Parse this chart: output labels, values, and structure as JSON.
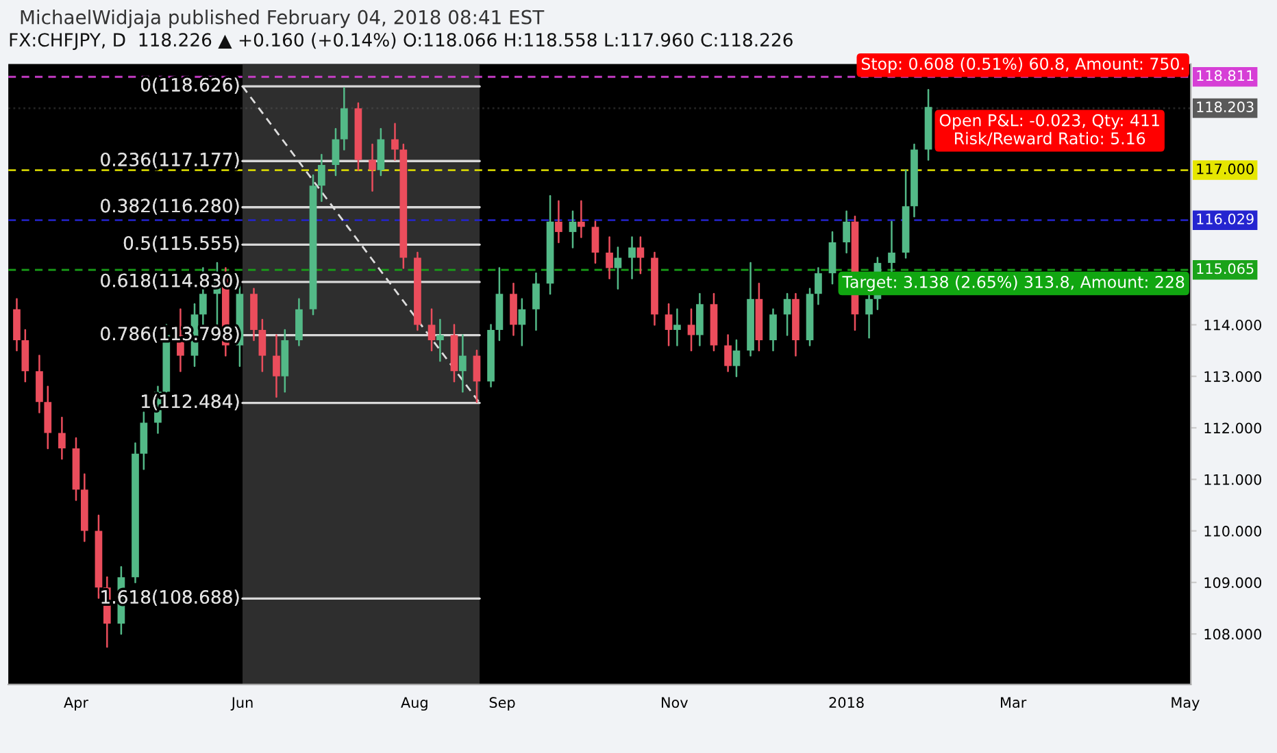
{
  "chart_data": {
    "type": "candlestick",
    "title": "MichaelWidjaja published February 04, 2018 08:41 EST",
    "subtitle": "FX:CHFJPY, D  118.226 ▲ +0.160 (+0.14%) O:118.066 H:118.558 L:117.960 C:118.226",
    "x": [
      "2017-03-13",
      "2017-03-16",
      "2017-03-21",
      "2017-03-24",
      "2017-03-29",
      "2017-04-03",
      "2017-04-06",
      "2017-04-11",
      "2017-04-14",
      "2017-04-19",
      "2017-04-24",
      "2017-04-27",
      "2017-05-02",
      "2017-05-05",
      "2017-05-10",
      "2017-05-15",
      "2017-05-18",
      "2017-05-23",
      "2017-05-26",
      "2017-05-31",
      "2017-06-05",
      "2017-06-08",
      "2017-06-13",
      "2017-06-16",
      "2017-06-21",
      "2017-06-26",
      "2017-06-29",
      "2017-07-04",
      "2017-07-07",
      "2017-07-12",
      "2017-07-17",
      "2017-07-20",
      "2017-07-25",
      "2017-07-28",
      "2017-08-02",
      "2017-08-07",
      "2017-08-10",
      "2017-08-15",
      "2017-08-18",
      "2017-08-23",
      "2017-08-28",
      "2017-08-31",
      "2017-09-05",
      "2017-09-08",
      "2017-09-13",
      "2017-09-18",
      "2017-09-21",
      "2017-09-26",
      "2017-09-29",
      "2017-10-04",
      "2017-10-09",
      "2017-10-12",
      "2017-10-17",
      "2017-10-20",
      "2017-10-25",
      "2017-10-30",
      "2017-11-02",
      "2017-11-07",
      "2017-11-10",
      "2017-11-15",
      "2017-11-20",
      "2017-11-23",
      "2017-11-28",
      "2017-12-01",
      "2017-12-06",
      "2017-12-11",
      "2017-12-14",
      "2017-12-19",
      "2017-12-22",
      "2017-12-27",
      "2018-01-01",
      "2018-01-04",
      "2018-01-09",
      "2018-01-12",
      "2018-01-17",
      "2018-01-22",
      "2018-01-25",
      "2018-01-30"
    ],
    "ohlc": [
      [
        114.3,
        114.5,
        113.5,
        113.7
      ],
      [
        113.7,
        113.9,
        112.9,
        113.1
      ],
      [
        113.1,
        113.4,
        112.3,
        112.5
      ],
      [
        112.5,
        112.8,
        111.6,
        111.9
      ],
      [
        111.9,
        112.2,
        111.4,
        111.6
      ],
      [
        111.6,
        111.8,
        110.6,
        110.8
      ],
      [
        110.8,
        111.1,
        109.8,
        110.0
      ],
      [
        110.0,
        110.3,
        108.7,
        108.9
      ],
      [
        108.9,
        109.1,
        107.75,
        108.2
      ],
      [
        108.2,
        109.3,
        108.0,
        109.1
      ],
      [
        109.1,
        111.7,
        109.0,
        111.5
      ],
      [
        111.5,
        112.3,
        111.2,
        112.1
      ],
      [
        112.1,
        112.8,
        111.9,
        112.7
      ],
      [
        112.7,
        114.0,
        112.7,
        113.8
      ],
      [
        113.8,
        114.3,
        113.1,
        113.4
      ],
      [
        113.4,
        114.4,
        113.2,
        114.2
      ],
      [
        114.2,
        115.1,
        114.0,
        114.6
      ],
      [
        114.6,
        115.2,
        114.0,
        114.9
      ],
      [
        114.9,
        115.1,
        113.4,
        113.6
      ],
      [
        113.6,
        114.8,
        113.2,
        114.6
      ],
      [
        114.6,
        114.7,
        113.7,
        113.9
      ],
      [
        113.9,
        114.1,
        113.1,
        113.4
      ],
      [
        113.4,
        113.8,
        112.6,
        113.0
      ],
      [
        113.0,
        113.9,
        112.7,
        113.7
      ],
      [
        113.7,
        114.5,
        113.6,
        114.3
      ],
      [
        114.3,
        116.9,
        114.2,
        116.7
      ],
      [
        116.7,
        117.3,
        116.4,
        117.1
      ],
      [
        117.1,
        117.8,
        116.9,
        117.6
      ],
      [
        117.6,
        118.6,
        117.4,
        118.2
      ],
      [
        118.2,
        118.3,
        117.0,
        117.2
      ],
      [
        117.2,
        117.5,
        116.6,
        117.0
      ],
      [
        117.0,
        117.8,
        116.9,
        117.6
      ],
      [
        117.6,
        117.9,
        117.2,
        117.4
      ],
      [
        117.4,
        117.5,
        115.1,
        115.3
      ],
      [
        115.3,
        115.4,
        113.9,
        114.0
      ],
      [
        114.0,
        114.3,
        113.5,
        113.7
      ],
      [
        113.7,
        114.1,
        113.3,
        113.8
      ],
      [
        113.8,
        114.0,
        112.9,
        113.1
      ],
      [
        113.1,
        113.8,
        112.7,
        113.4
      ],
      [
        113.4,
        113.5,
        112.5,
        112.9
      ],
      [
        112.9,
        114.0,
        112.8,
        113.9
      ],
      [
        113.9,
        115.1,
        113.7,
        114.6
      ],
      [
        114.6,
        114.8,
        113.8,
        114.0
      ],
      [
        114.0,
        114.5,
        113.6,
        114.3
      ],
      [
        114.3,
        115.0,
        113.9,
        114.8
      ],
      [
        114.8,
        116.5,
        114.6,
        116.0
      ],
      [
        116.0,
        116.4,
        115.6,
        115.8
      ],
      [
        115.8,
        116.2,
        115.5,
        116.0
      ],
      [
        116.0,
        116.4,
        115.7,
        115.9
      ],
      [
        115.9,
        116.0,
        115.2,
        115.4
      ],
      [
        115.4,
        115.7,
        114.9,
        115.1
      ],
      [
        115.1,
        115.5,
        114.7,
        115.3
      ],
      [
        115.3,
        115.7,
        114.9,
        115.5
      ],
      [
        115.5,
        115.7,
        115.0,
        115.3
      ],
      [
        115.3,
        115.4,
        114.0,
        114.2
      ],
      [
        114.2,
        114.4,
        113.6,
        113.9
      ],
      [
        113.9,
        114.3,
        113.6,
        114.0
      ],
      [
        114.0,
        114.3,
        113.5,
        113.8
      ],
      [
        113.8,
        114.6,
        113.6,
        114.4
      ],
      [
        114.4,
        114.6,
        113.5,
        113.6
      ],
      [
        113.6,
        113.8,
        113.1,
        113.2
      ],
      [
        113.2,
        113.7,
        113.0,
        113.5
      ],
      [
        113.5,
        115.2,
        113.4,
        114.5
      ],
      [
        114.5,
        114.8,
        113.5,
        113.7
      ],
      [
        113.7,
        114.3,
        113.5,
        114.2
      ],
      [
        114.2,
        114.6,
        113.8,
        114.5
      ],
      [
        114.5,
        114.6,
        113.4,
        113.7
      ],
      [
        113.7,
        114.7,
        113.6,
        114.6
      ],
      [
        114.6,
        115.1,
        114.4,
        115.0
      ],
      [
        115.0,
        115.8,
        114.8,
        115.6
      ],
      [
        115.6,
        116.2,
        115.4,
        116.0
      ],
      [
        116.0,
        116.1,
        113.9,
        114.2
      ],
      [
        114.2,
        114.6,
        113.75,
        114.5
      ],
      [
        114.5,
        115.3,
        114.3,
        115.2
      ],
      [
        115.2,
        116.0,
        115.0,
        115.4
      ],
      [
        115.4,
        117.0,
        115.3,
        116.3
      ],
      [
        116.3,
        117.5,
        116.1,
        117.4
      ],
      [
        117.4,
        118.558,
        117.2,
        118.226
      ]
    ],
    "colors": [
      "#eb4d5c",
      "#eb4d5c",
      "#eb4d5c",
      "#eb4d5c",
      "#eb4d5c",
      "#eb4d5c",
      "#eb4d5c",
      "#eb4d5c",
      "#eb4d5c",
      "#53b987",
      "#53b987",
      "#53b987",
      "#53b987",
      "#53b987",
      "#eb4d5c",
      "#53b987",
      "#53b987",
      "#53b987",
      "#eb4d5c",
      "#53b987",
      "#eb4d5c",
      "#eb4d5c",
      "#eb4d5c",
      "#53b987",
      "#53b987",
      "#53b987",
      "#53b987",
      "#53b987",
      "#53b987",
      "#eb4d5c",
      "#eb4d5c",
      "#53b987",
      "#eb4d5c",
      "#eb4d5c",
      "#eb4d5c",
      "#eb4d5c",
      "#53b987",
      "#eb4d5c",
      "#53b987",
      "#eb4d5c",
      "#53b987",
      "#53b987",
      "#eb4d5c",
      "#53b987",
      "#53b987",
      "#53b987",
      "#eb4d5c",
      "#53b987",
      "#eb4d5c",
      "#eb4d5c",
      "#eb4d5c",
      "#53b987",
      "#53b987",
      "#eb4d5c",
      "#eb4d5c",
      "#eb4d5c",
      "#53b987",
      "#eb4d5c",
      "#53b987",
      "#eb4d5c",
      "#eb4d5c",
      "#53b987",
      "#53b987",
      "#eb4d5c",
      "#53b987",
      "#53b987",
      "#eb4d5c",
      "#53b987",
      "#53b987",
      "#53b987",
      "#53b987",
      "#eb4d5c",
      "#53b987",
      "#53b987",
      "#53b987",
      "#53b987",
      "#53b987",
      "#53b987"
    ],
    "series": [
      {
        "type": "line",
        "x": [
          "2017-06-01",
          "2017-08-24"
        ],
        "values": [
          118.626,
          112.484
        ],
        "color": "#dddddd",
        "line_style": "dashed"
      }
    ],
    "xlim": [
      "2017-03-10",
      "2018-05-03"
    ],
    "xticks": [
      {
        "value": "2017-04-03",
        "label": "Apr"
      },
      {
        "value": "2017-06-01",
        "label": "Jun"
      },
      {
        "value": "2017-08-01",
        "label": "Aug"
      },
      {
        "value": "2017-09-01",
        "label": "Sep"
      },
      {
        "value": "2017-11-01",
        "label": "Nov"
      },
      {
        "value": "2018-01-01",
        "label": "2018"
      },
      {
        "value": "2018-03-01",
        "label": "Mar"
      },
      {
        "value": "2018-05-01",
        "label": "May"
      }
    ],
    "ylim": [
      107.02,
      119.06
    ],
    "yticks": [
      {
        "value": 108,
        "label": "108.000"
      },
      {
        "value": 109,
        "label": "109.000"
      },
      {
        "value": 110,
        "label": "110.000"
      },
      {
        "value": 111,
        "label": "111.000"
      },
      {
        "value": 112,
        "label": "112.000"
      },
      {
        "value": 113,
        "label": "113.000"
      },
      {
        "value": 114,
        "label": "114.000"
      }
    ],
    "grid": false,
    "bands": [
      {
        "axis": "x",
        "from": "2017-06-01",
        "to": "2017-08-24",
        "color": "#2e2e2e"
      }
    ],
    "ref_lines": [
      {
        "axis": "y",
        "value": 118.626,
        "label": "0(118.626)",
        "color": "#d8d8d8",
        "line_style": "solid"
      },
      {
        "axis": "y",
        "value": 117.177,
        "label": "0.236(117.177)",
        "color": "#d8d8d8",
        "line_style": "solid"
      },
      {
        "axis": "y",
        "value": 116.28,
        "label": "0.382(116.280)",
        "color": "#d8d8d8",
        "line_style": "solid"
      },
      {
        "axis": "y",
        "value": 115.555,
        "label": "0.5(115.555)",
        "color": "#d8d8d8",
        "line_style": "solid"
      },
      {
        "axis": "y",
        "value": 114.83,
        "label": "0.618(114.830)",
        "color": "#d8d8d8",
        "line_style": "solid"
      },
      {
        "axis": "y",
        "value": 113.798,
        "label": "0.786(113.798)",
        "color": "#d8d8d8",
        "line_style": "solid"
      },
      {
        "axis": "y",
        "value": 112.484,
        "label": "1(112.484)",
        "color": "#d8d8d8",
        "line_style": "solid"
      },
      {
        "axis": "y",
        "value": 108.688,
        "label": "1.618(108.688)",
        "color": "#d8d8d8",
        "line_style": "solid"
      },
      {
        "axis": "y",
        "value": 118.811,
        "label": "118.811",
        "color": "#d63fd6",
        "line_style": "dashed"
      },
      {
        "axis": "y",
        "value": 118.203,
        "label": "118.203",
        "color": "#5a5a5a",
        "line_style": "dotted"
      },
      {
        "axis": "y",
        "value": 117.0,
        "label": "117.000",
        "color": "#e6e600",
        "line_style": "dashed"
      },
      {
        "axis": "y",
        "value": 116.029,
        "label": "116.029",
        "color": "#2525d0",
        "line_style": "dashed"
      },
      {
        "axis": "y",
        "value": 115.065,
        "label": "115.065",
        "color": "#1aa31a",
        "line_style": "dashed"
      }
    ],
    "annotations": [
      {
        "text": "Stop: 0.608 (0.51%) 60.8, Amount: 750.",
        "x": "2018-05-01",
        "y": 118.811
      },
      {
        "text": "Open P&L: -0.023, Qty: 411\nRisk/Reward Ratio: 5.16",
        "x": "2018-03-14",
        "y": 118.203
      },
      {
        "text": "Target: 3.138 (2.65%) 313.8, Amount: 228",
        "x": "2018-05-01",
        "y": 115.065
      }
    ]
  }
}
